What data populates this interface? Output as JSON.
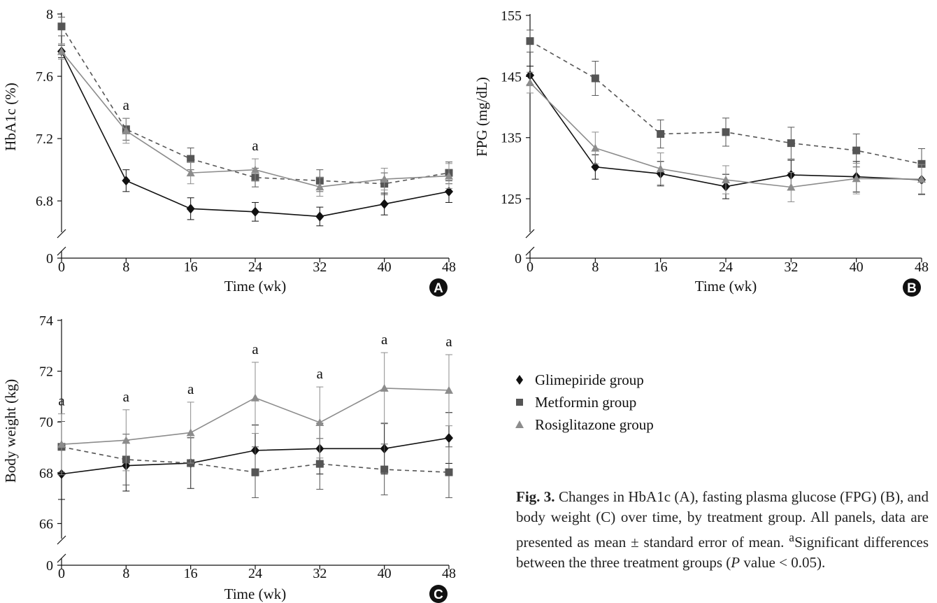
{
  "chart_data": [
    {
      "type": "line",
      "panel": "A",
      "x": [
        0,
        8,
        16,
        24,
        32,
        40,
        48
      ],
      "xticks": [
        "0",
        "8",
        "16",
        "24",
        "32",
        "40",
        "48"
      ],
      "yticks": [
        "0",
        "6.8",
        "7.2",
        "7.6",
        "8"
      ],
      "xlabel": "Time (wk)",
      "ylabel": "HbA1c (%)",
      "ylim": [
        6.5,
        8.0
      ],
      "axis_break": true,
      "series": [
        {
          "name": "Glimepiride group",
          "values": [
            7.76,
            6.93,
            6.75,
            6.73,
            6.7,
            6.78,
            6.86
          ],
          "err": [
            0.04,
            0.07,
            0.07,
            0.06,
            0.06,
            0.07,
            0.07
          ]
        },
        {
          "name": "Metformin group",
          "values": [
            7.92,
            7.26,
            7.07,
            6.95,
            6.93,
            6.91,
            6.98
          ],
          "err": [
            0.06,
            0.07,
            0.07,
            0.06,
            0.07,
            0.07,
            0.07
          ]
        },
        {
          "name": "Rosiglitazone group",
          "values": [
            7.76,
            7.25,
            6.98,
            7.0,
            6.89,
            6.94,
            6.96
          ],
          "err": [
            0.05,
            0.08,
            0.07,
            0.07,
            0.06,
            0.07,
            0.08
          ]
        }
      ],
      "annotations": [
        {
          "x": 8,
          "text": "a"
        },
        {
          "x": 24,
          "text": "a"
        }
      ]
    },
    {
      "type": "line",
      "panel": "B",
      "x": [
        0,
        8,
        16,
        24,
        32,
        40,
        48
      ],
      "xticks": [
        "0",
        "8",
        "16",
        "24",
        "32",
        "40",
        "48"
      ],
      "yticks": [
        "0",
        "125",
        "135",
        "145",
        "155"
      ],
      "xlabel": "Time (wk)",
      "ylabel": "FPG (mg/dL)",
      "ylim": [
        117,
        155
      ],
      "axis_break": true,
      "series": [
        {
          "name": "Glimepiride group",
          "values": [
            145.2,
            130.2,
            129.1,
            127.0,
            128.9,
            128.6,
            128.1
          ],
          "err": [
            1.5,
            2.0,
            2.0,
            2.0,
            2.4,
            2.5,
            2.4
          ]
        },
        {
          "name": "Metformin group",
          "values": [
            150.8,
            144.7,
            135.6,
            135.9,
            134.1,
            132.9,
            130.7
          ],
          "err": [
            1.8,
            2.8,
            2.3,
            2.3,
            2.6,
            2.7,
            2.5
          ]
        },
        {
          "name": "Rosiglitazone group",
          "values": [
            144.0,
            133.3,
            129.9,
            128.1,
            126.9,
            128.3,
            128.2
          ],
          "err": [
            1.7,
            2.6,
            2.6,
            2.3,
            2.4,
            2.5,
            2.4
          ]
        }
      ],
      "annotations": []
    },
    {
      "type": "line",
      "panel": "C",
      "x": [
        0,
        8,
        16,
        24,
        32,
        40,
        48
      ],
      "xticks": [
        "0",
        "8",
        "16",
        "24",
        "32",
        "40",
        "48"
      ],
      "yticks": [
        "0",
        "66",
        "68",
        "70",
        "72",
        "74"
      ],
      "xlabel": "Time (wk)",
      "ylabel": "Body weight (kg)",
      "ylim": [
        64.8,
        74
      ],
      "axis_break": true,
      "series": [
        {
          "name": "Glimepiride group",
          "values": [
            67.95,
            68.28,
            68.38,
            68.88,
            68.95,
            68.95,
            69.37
          ],
          "err": [
            1.0,
            1.0,
            1.0,
            1.0,
            1.0,
            1.0,
            1.0
          ]
        },
        {
          "name": "Metformin group",
          "values": [
            69.02,
            68.52,
            68.38,
            68.02,
            68.35,
            68.13,
            68.02
          ],
          "err": [
            1.0,
            1.0,
            1.0,
            1.0,
            1.0,
            1.0,
            1.0
          ]
        },
        {
          "name": "Rosiglitazone group",
          "values": [
            69.12,
            69.28,
            69.58,
            70.95,
            69.98,
            71.33,
            71.25
          ],
          "err": [
            1.2,
            1.2,
            1.2,
            1.4,
            1.4,
            1.4,
            1.4
          ]
        }
      ],
      "annotations": [
        {
          "x": 0,
          "text": "a"
        },
        {
          "x": 8,
          "text": "a"
        },
        {
          "x": 16,
          "text": "a"
        },
        {
          "x": 24,
          "text": "a"
        },
        {
          "x": 32,
          "text": "a"
        },
        {
          "x": 40,
          "text": "a"
        },
        {
          "x": 48,
          "text": "a"
        }
      ]
    }
  ],
  "legend": {
    "items": [
      {
        "label": "Glimepiride group",
        "marker": "diamond"
      },
      {
        "label": "Metformin group",
        "marker": "square"
      },
      {
        "label": "Rosiglitazone group",
        "marker": "triangle"
      }
    ]
  },
  "styles": {
    "Glimepiride group": {
      "color": "#111111",
      "dash": "",
      "marker": "diamond"
    },
    "Metformin group": {
      "color": "#555555",
      "dash": "6,5",
      "marker": "square"
    },
    "Rosiglitazone group": {
      "color": "#8c8c8c",
      "dash": "",
      "marker": "triangle"
    }
  },
  "caption": {
    "label": "Fig. 3.",
    "text": "Changes in HbA1c (A), fasting plasma glucose (FPG) (B), and body weight (C) over time, by treatment group. All panels, data are presented as mean ± standard error of mean.",
    "footnote_mark": "a",
    "footnote_text": "Significant differences between the three treatment groups (",
    "footnote_italic": "P",
    "footnote_end": " value < 0.05)."
  }
}
